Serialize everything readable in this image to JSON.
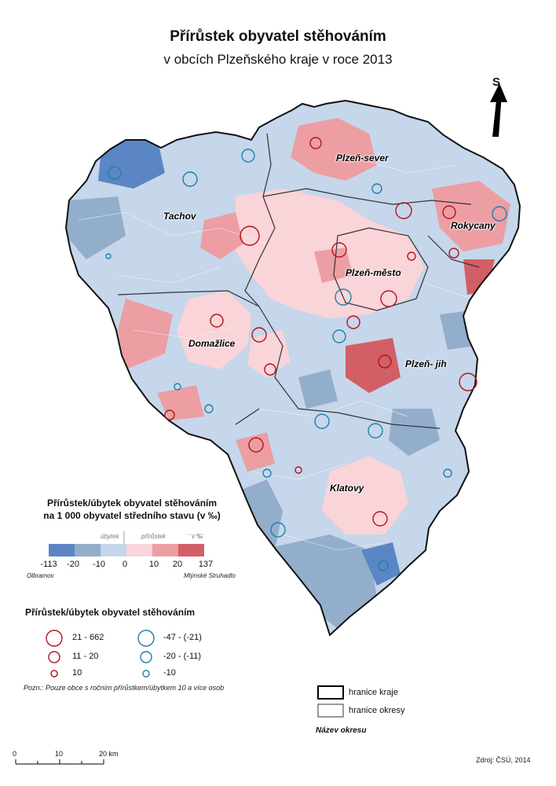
{
  "title": "Přírůstek obyvatel stěhováním",
  "subtitle": "v obcích Plzeňského kraje v roce 2013",
  "north": "S",
  "okresy": [
    "Plzeň-sever",
    "Tachov",
    "Rokycany",
    "Plzeň-město",
    "Domažlice",
    "Plzeň- jih",
    "Klatovy"
  ],
  "legend_rate": {
    "title_line1": "Přírůstek/úbytek obyvatel stěhováním",
    "title_line2": "na 1 000 obyvatel středního stavu (v ‰)",
    "ubytek": "úbytek",
    "prirustek": "přírůstek",
    "unit": "v ‰",
    "labels": [
      "-113",
      "-20",
      "-10",
      "0",
      "10",
      "20",
      "137"
    ],
    "colors": [
      "#5b86c5",
      "#93aecb",
      "#c6d6eb",
      "#f9d4d8",
      "#ec9ea3",
      "#d25f66"
    ],
    "min_name": "Olbramov",
    "max_name": "Mlýnské Struhadlo"
  },
  "legend_abs": {
    "title": "Přírůstek/úbytek obyvatel stěhováním",
    "positive": [
      "21 - 662",
      "11 - 20",
      "10"
    ],
    "negative": [
      "-47 - (-21)",
      "-20 - (-11)",
      "-10"
    ],
    "positive_color": "#b5121b",
    "negative_color": "#1b82a8"
  },
  "note": "Pozn.: Pouze obce s ročním přírůstkem/úbytkem 10 a více osob",
  "boundaries": {
    "kraj": "hranice kraje",
    "okres": "hranice okresy",
    "okres_name": "Název okresu"
  },
  "scalebar": {
    "labels": [
      "0",
      "10",
      "20 km"
    ]
  },
  "source": "Zdroj: ČSÚ, 2014"
}
